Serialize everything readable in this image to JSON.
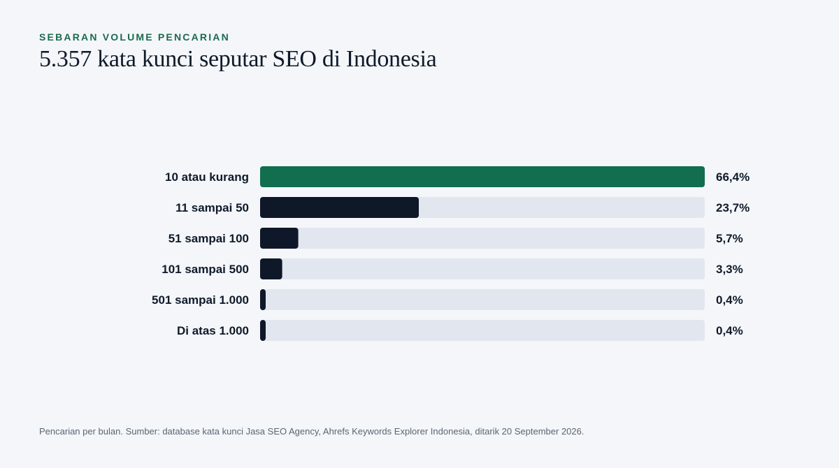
{
  "header": {
    "eyebrow": "SEBARAN VOLUME PENCARIAN",
    "title": "5.357 kata kunci seputar SEO di Indonesia"
  },
  "footnote": "Pencarian per bulan. Sumber: database kata kunci Jasa SEO Agency, Ahrefs Keywords Explorer Indonesia, ditarik 20 September 2026.",
  "colors": {
    "highlight": "#116e4e",
    "bar": "#0f1828",
    "track": "#e2e7ef",
    "label": "#0f1a2a"
  },
  "chart_data": {
    "type": "bar",
    "orientation": "horizontal",
    "categories": [
      "10 atau kurang",
      "11 sampai 50",
      "51 sampai 100",
      "101 sampai 500",
      "501 sampai 1.000",
      "Di atas 1.000"
    ],
    "values": [
      66.4,
      23.7,
      5.7,
      3.3,
      0.4,
      0.4
    ],
    "value_labels": [
      "66,4%",
      "23,7%",
      "5,7%",
      "3,3%",
      "0,4%",
      "0,4%"
    ],
    "highlight_index": 0,
    "xlim": [
      0,
      66.4
    ],
    "unit": "%",
    "grid": false
  }
}
